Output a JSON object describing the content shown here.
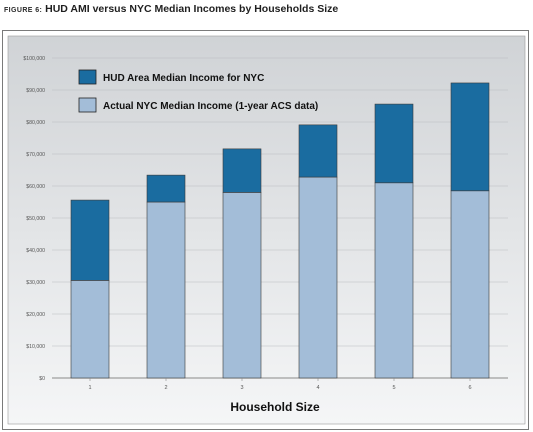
{
  "figure_number": "FIGURE 6:",
  "figure_title": "HUD AMI versus NYC Median Incomes by Households Size",
  "chart_data": {
    "type": "bar",
    "stacked": true,
    "categories": [
      "1",
      "2",
      "3",
      "4",
      "5",
      "6"
    ],
    "series": [
      {
        "name": "Actual NYC Median Income (1-year ACS data)",
        "color": "#a3bdd8",
        "values": [
          30500,
          55000,
          58000,
          62800,
          61000,
          58500
        ]
      },
      {
        "name": "HUD Area Median Income for NYC",
        "color": "#1a6ca0",
        "values": [
          25100,
          8400,
          13600,
          16300,
          24600,
          33700
        ]
      }
    ],
    "totals": [
      55600,
      63400,
      71600,
      79100,
      85600,
      92200
    ],
    "title": "",
    "xlabel": "Household Size",
    "ylabel": "",
    "ylim": [
      0,
      100000
    ],
    "yticks": [
      "$0",
      "$10,000",
      "$20,000",
      "$30,000",
      "$40,000",
      "$50,000",
      "$60,000",
      "$70,000",
      "$80,000",
      "$90,000",
      "$100,000"
    ],
    "grid": true,
    "legend": "top-left"
  }
}
